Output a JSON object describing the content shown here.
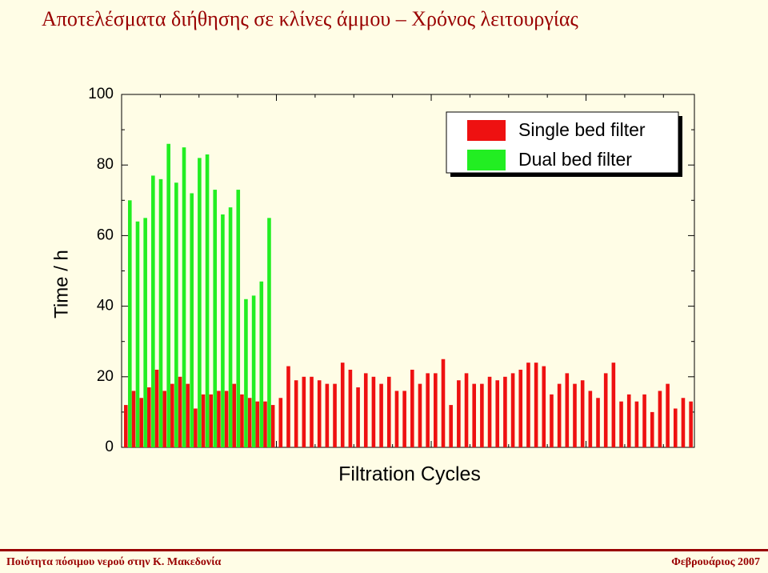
{
  "chart_data": {
    "type": "bar",
    "title": "Αποτελέσματα διήθησης σε κλίνες άμμου – Χρόνος λειτουργίας",
    "ylabel": "Time / h",
    "xlabel": "Filtration Cycles",
    "ylim": [
      0,
      100
    ],
    "yticks": [
      0,
      20,
      40,
      60,
      80,
      100
    ],
    "legend": "top-right",
    "series": [
      {
        "name": "Single bed filter",
        "color": "#ee1111",
        "values": [
          12,
          16,
          14,
          17,
          22,
          16,
          18,
          20,
          18,
          11,
          15,
          15,
          16,
          16,
          18,
          15,
          14,
          13,
          13,
          12,
          14,
          23,
          19,
          20,
          20,
          19,
          18,
          18,
          24,
          22,
          17,
          21,
          20,
          18,
          20,
          16,
          16,
          22,
          18,
          21,
          21,
          25,
          12,
          19,
          21,
          18,
          18,
          20,
          19,
          20,
          21,
          22,
          24,
          24,
          23,
          15,
          18,
          21,
          18,
          19,
          16,
          14,
          21,
          24,
          13,
          15,
          13,
          15,
          10,
          16,
          18,
          11,
          14,
          13
        ]
      },
      {
        "name": "Dual bed filter",
        "color": "#22ee22",
        "values": [
          70,
          64,
          65,
          77,
          76,
          86,
          75,
          85,
          72,
          82,
          83,
          73,
          66,
          68,
          73,
          42,
          43,
          47,
          65,
          null,
          null,
          null,
          null,
          null,
          null,
          null,
          null,
          null,
          null,
          null,
          null,
          null,
          null,
          null,
          null,
          null,
          null,
          null,
          null,
          null,
          null,
          null,
          null,
          null,
          null,
          null,
          null,
          null,
          null,
          null,
          null,
          null,
          null,
          null,
          null,
          null,
          null,
          null,
          null,
          null,
          null,
          null,
          null,
          null,
          null,
          null,
          null,
          null,
          null,
          null,
          null,
          null,
          null,
          null
        ]
      }
    ]
  },
  "footer": {
    "left": "Ποιότητα πόσιμου νερού στην Κ. Μακεδονία",
    "right": "Φεβρουάριος 2007"
  }
}
